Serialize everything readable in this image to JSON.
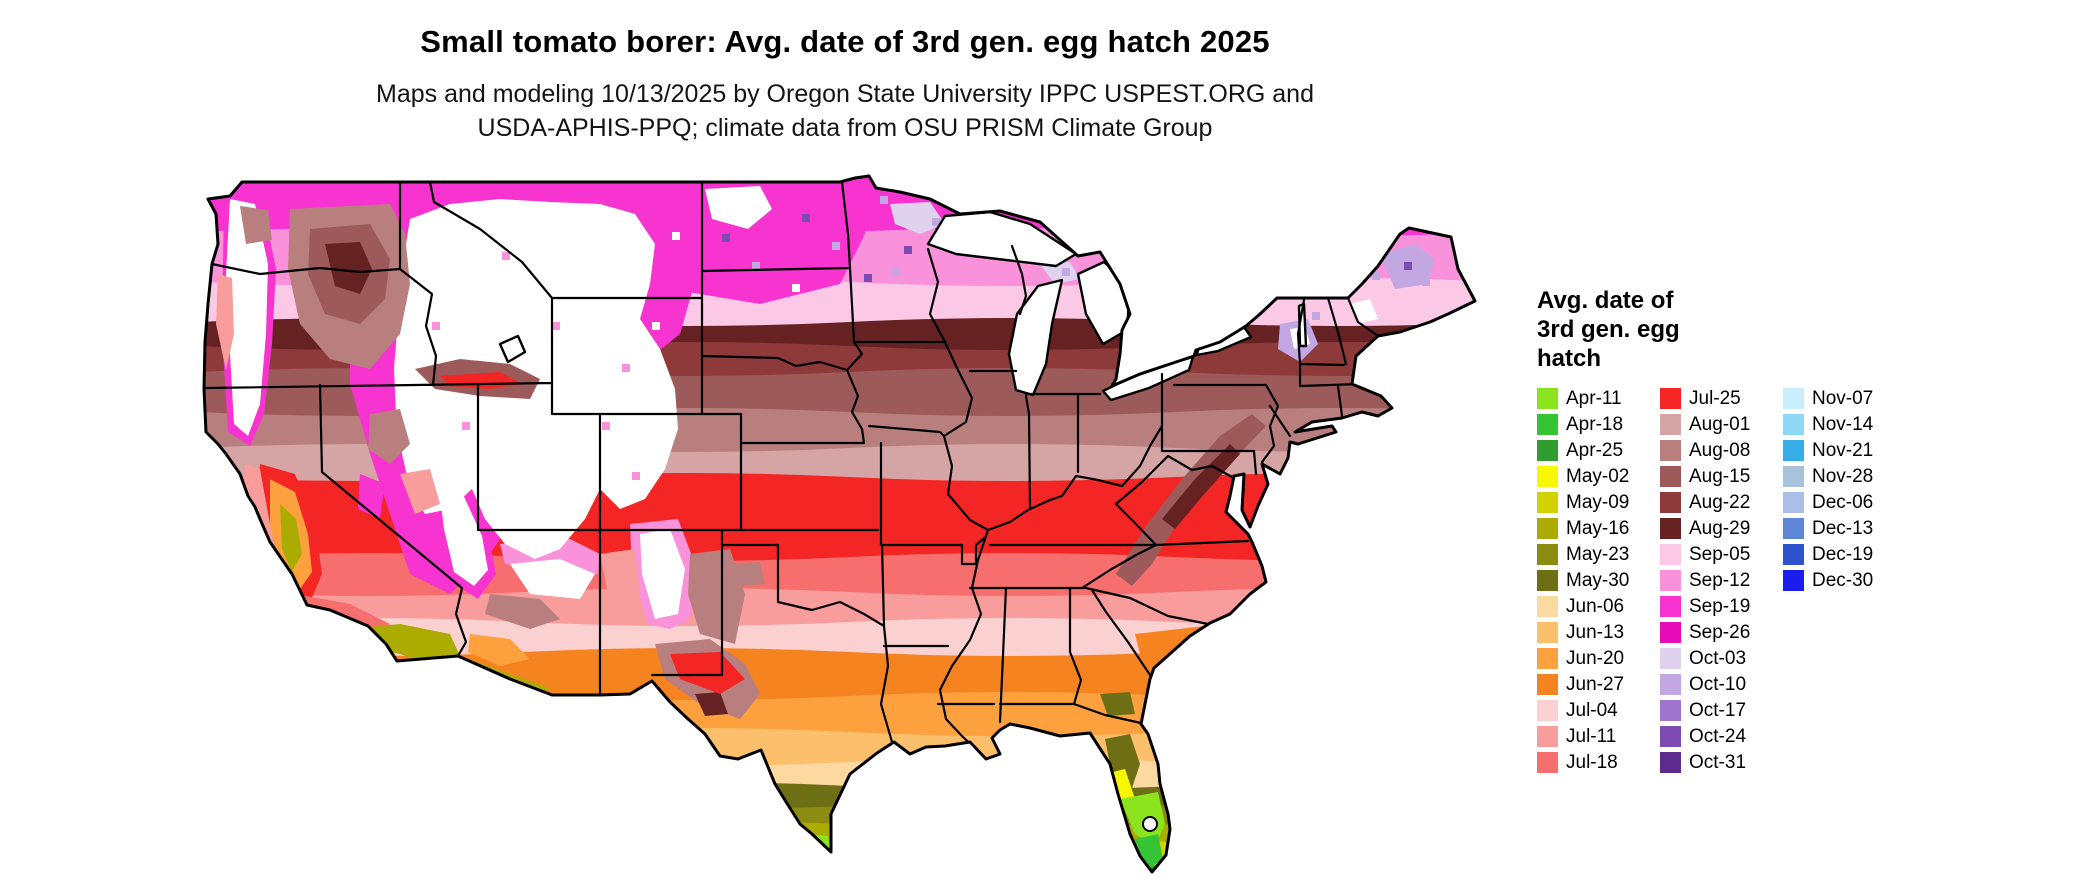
{
  "title": "Small tomato borer: Avg. date of 3rd gen. egg hatch 2025",
  "subtitle_line1": "Maps and modeling 10/13/2025 by Oregon State University IPPC USPEST.ORG and",
  "subtitle_line2": "USDA-APHIS-PPQ; climate data from OSU PRISM Climate Group",
  "legend": {
    "title_lines": [
      "Avg. date of",
      "3rd gen. egg",
      "hatch"
    ],
    "columns": [
      [
        {
          "label": "Apr-11",
          "color": "apr11"
        },
        {
          "label": "Apr-18",
          "color": "apr18"
        },
        {
          "label": "Apr-25",
          "color": "apr25"
        },
        {
          "label": "May-02",
          "color": "may02"
        },
        {
          "label": "May-09",
          "color": "may09"
        },
        {
          "label": "May-16",
          "color": "may16"
        },
        {
          "label": "May-23",
          "color": "may23"
        },
        {
          "label": "May-30",
          "color": "may30"
        },
        {
          "label": "Jun-06",
          "color": "jun06"
        },
        {
          "label": "Jun-13",
          "color": "jun13"
        },
        {
          "label": "Jun-20",
          "color": "jun20"
        },
        {
          "label": "Jun-27",
          "color": "jun27"
        },
        {
          "label": "Jul-04",
          "color": "jul04"
        },
        {
          "label": "Jul-11",
          "color": "jul11"
        },
        {
          "label": "Jul-18",
          "color": "jul18"
        }
      ],
      [
        {
          "label": "Jul-25",
          "color": "jul25"
        },
        {
          "label": "Aug-01",
          "color": "aug01"
        },
        {
          "label": "Aug-08",
          "color": "aug08"
        },
        {
          "label": "Aug-15",
          "color": "aug15"
        },
        {
          "label": "Aug-22",
          "color": "aug22"
        },
        {
          "label": "Aug-29",
          "color": "aug29"
        },
        {
          "label": "Sep-05",
          "color": "sep05"
        },
        {
          "label": "Sep-12",
          "color": "sep12"
        },
        {
          "label": "Sep-19",
          "color": "sep19"
        },
        {
          "label": "Sep-26",
          "color": "sep26"
        },
        {
          "label": "Oct-03",
          "color": "oct03"
        },
        {
          "label": "Oct-10",
          "color": "oct10"
        },
        {
          "label": "Oct-17",
          "color": "oct17"
        },
        {
          "label": "Oct-24",
          "color": "oct24"
        },
        {
          "label": "Oct-31",
          "color": "oct31"
        }
      ],
      [
        {
          "label": "Nov-07",
          "color": "nov07"
        },
        {
          "label": "Nov-14",
          "color": "nov14"
        },
        {
          "label": "Nov-21",
          "color": "nov21"
        },
        {
          "label": "Nov-28",
          "color": "nov28"
        },
        {
          "label": "Dec-06",
          "color": "dec06"
        },
        {
          "label": "Dec-13",
          "color": "dec13"
        },
        {
          "label": "Dec-19",
          "color": "dec19"
        },
        {
          "label": "Dec-30",
          "color": "dec30"
        }
      ]
    ]
  },
  "colors": {
    "apr11": "#8CE41F",
    "apr18": "#35C435",
    "apr25": "#2F9E2F",
    "may02": "#F7F700",
    "may09": "#D2D200",
    "may16": "#ACAC00",
    "may23": "#8C8C10",
    "may30": "#6E6E14",
    "jun06": "#FBD9A0",
    "jun13": "#FCC06C",
    "jun20": "#FCA13E",
    "jun27": "#F5831F",
    "jul04": "#FBD0D0",
    "jul11": "#F89C9C",
    "jul18": "#F76E6E",
    "jul25": "#F32525",
    "aug01": "#D5A5A5",
    "aug08": "#B97F7F",
    "aug15": "#9D5A5A",
    "aug22": "#8F3A3A",
    "aug29": "#662222",
    "sep05": "#FBC9E6",
    "sep12": "#F991DB",
    "sep19": "#F733D0",
    "sep26": "#E50CB8",
    "oct03": "#DED2EF",
    "oct10": "#C3A7E3",
    "oct17": "#9F74CC",
    "oct24": "#7E4BB0",
    "oct31": "#5C2B8D",
    "nov07": "#C9EEFD",
    "nov14": "#8FD9F6",
    "nov21": "#35AEE8",
    "nov28": "#A9C2DC",
    "dec06": "#A9BFE8",
    "dec13": "#5E86D8",
    "dec19": "#2D52CC",
    "dec30": "#1A1CF0",
    "no_data": "#FFFFFF",
    "border": "#000000"
  }
}
